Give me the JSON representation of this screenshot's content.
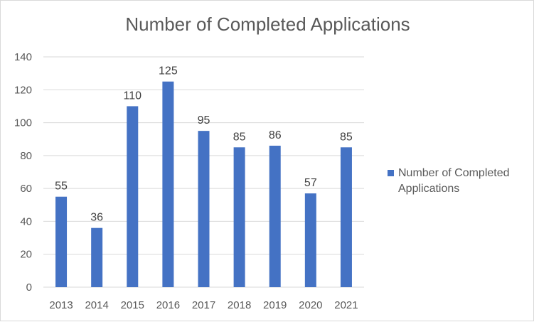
{
  "chart_data": {
    "type": "bar",
    "title": "Number of Completed Applications",
    "categories": [
      "2013",
      "2014",
      "2015",
      "2016",
      "2017",
      "2018",
      "2019",
      "2020",
      "2021"
    ],
    "series": [
      {
        "name": "Number of Completed Applications",
        "values": [
          55,
          36,
          110,
          125,
          95,
          85,
          86,
          57,
          85
        ],
        "color": "#4472c4"
      }
    ],
    "ylim": [
      0,
      140
    ],
    "yticks": [
      0,
      20,
      40,
      60,
      80,
      100,
      120,
      140
    ],
    "grid": true,
    "legend": "right",
    "data_labels": true
  }
}
